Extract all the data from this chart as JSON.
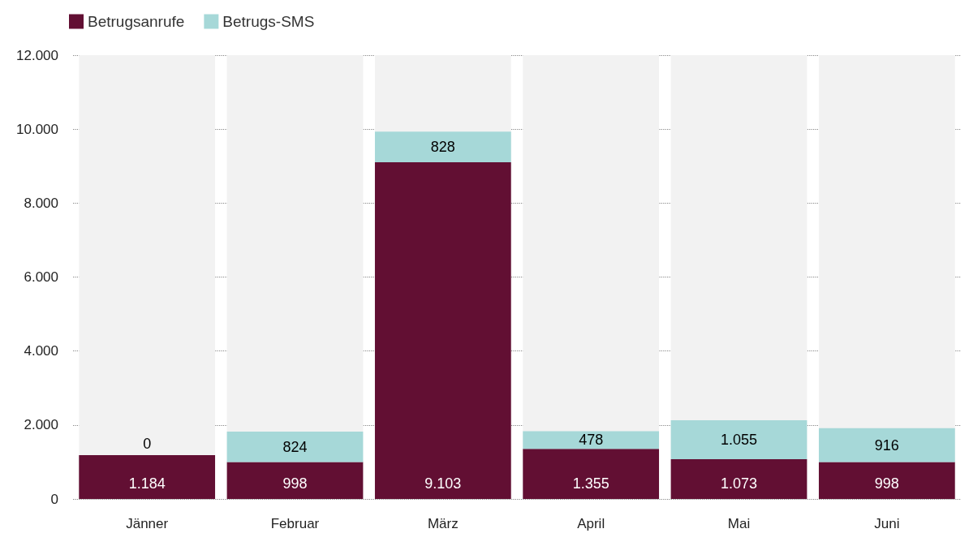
{
  "chart_data": {
    "type": "bar",
    "stacked": true,
    "categories": [
      "Jänner",
      "Februar",
      "März",
      "April",
      "Mai",
      "Juni"
    ],
    "series": [
      {
        "name": "Betrugsanrufe",
        "color": "#620f33",
        "values": [
          1184,
          998,
          9103,
          1355,
          1073,
          998
        ],
        "value_labels": [
          "1.184",
          "998",
          "9.103",
          "1.355",
          "1.073",
          "998"
        ]
      },
      {
        "name": "Betrugs-SMS",
        "color": "#a6d8d8",
        "values": [
          0,
          824,
          828,
          478,
          1055,
          916
        ],
        "value_labels": [
          "0",
          "824",
          "828",
          "478",
          "1.055",
          "916"
        ]
      }
    ],
    "ylim": [
      0,
      12000
    ],
    "yticks": [
      {
        "value": 0,
        "label": "0"
      },
      {
        "value": 2000,
        "label": "2.000"
      },
      {
        "value": 4000,
        "label": "4.000"
      },
      {
        "value": 6000,
        "label": "6.000"
      },
      {
        "value": 8000,
        "label": "8.000"
      },
      {
        "value": 10000,
        "label": "10.000"
      },
      {
        "value": 12000,
        "label": "12.000"
      }
    ],
    "grid": "y",
    "legend": "top left"
  }
}
